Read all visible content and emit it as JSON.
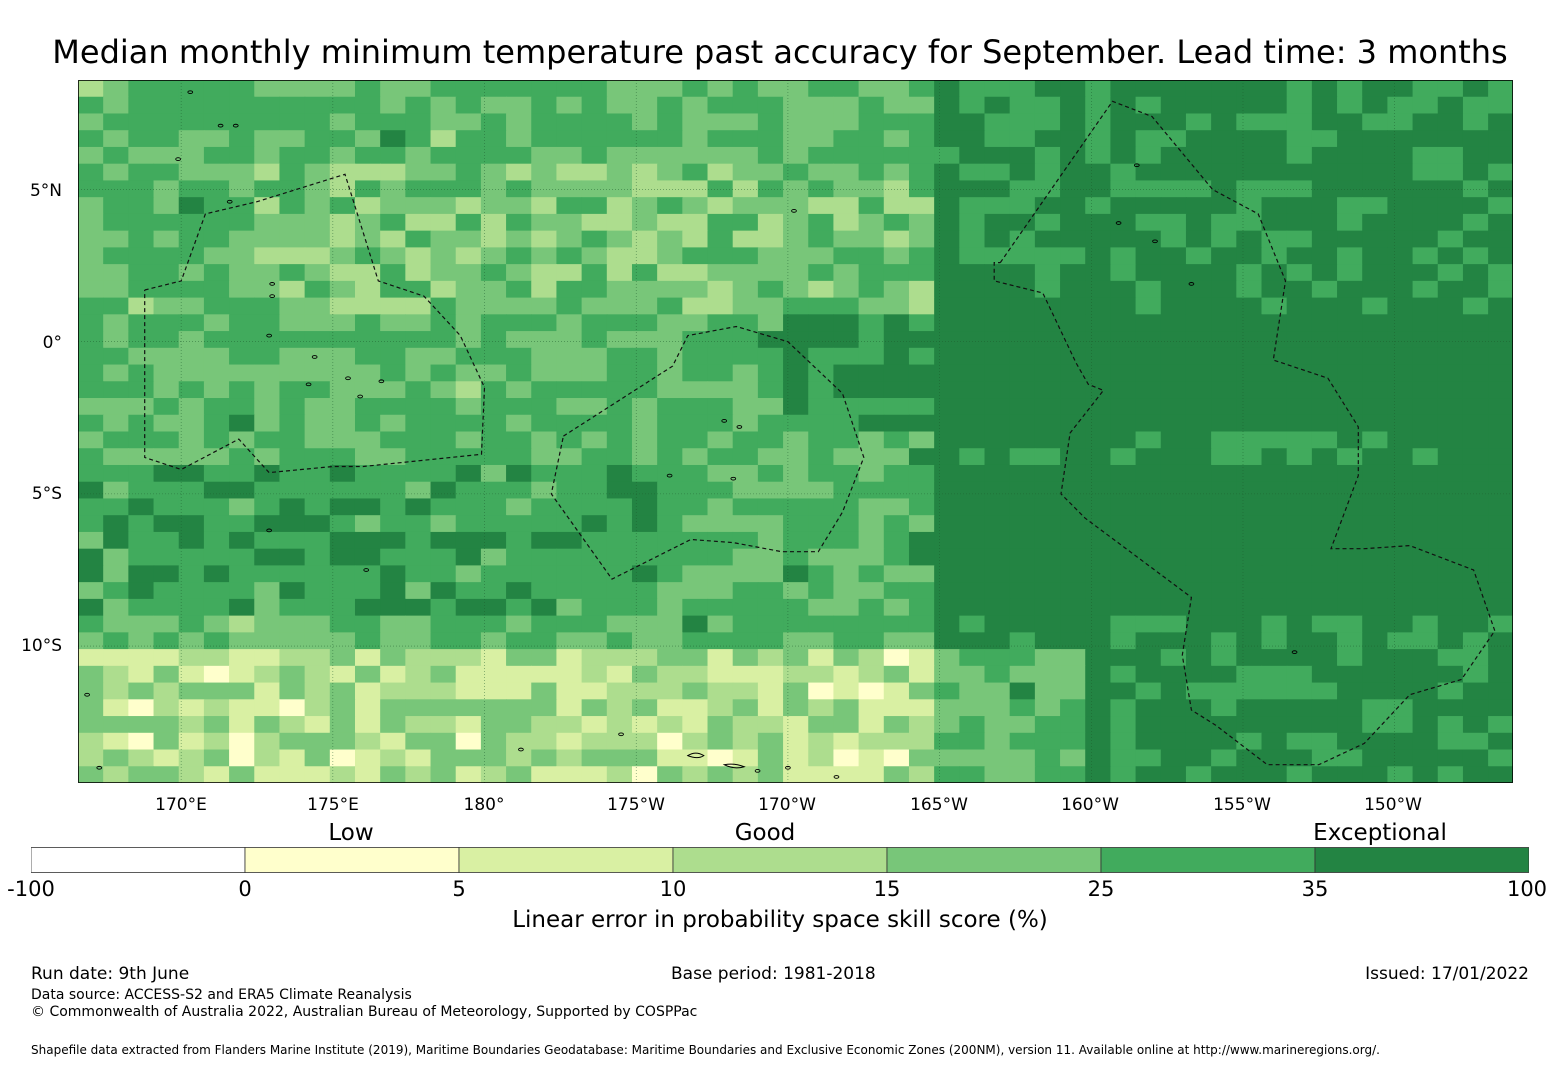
{
  "title": "Median monthly minimum temperature past accuracy for September. Lead time: 3 months",
  "map": {
    "lat_labels": [
      "5°N",
      "0°",
      "5°S",
      "10°S"
    ],
    "lon_labels": [
      "170°E",
      "175°E",
      "180°",
      "175°W",
      "170°W",
      "165°W",
      "160°W",
      "155°W",
      "150°W"
    ],
    "lon_range": [
      166.6,
      213.9
    ],
    "lat_range": [
      -14.5,
      8.6
    ],
    "grid": "dotted graticule every 5°",
    "colors": [
      "#ffffff",
      "#ffffcc",
      "#d9f0a3",
      "#addd8e",
      "#78c679",
      "#41ab5d",
      "#238443"
    ],
    "eez_outlines": "dashed"
  },
  "colorbar": {
    "category_labels": [
      "Low",
      "Good",
      "Exceptional"
    ],
    "tick_labels": [
      "-100",
      "0",
      "5",
      "10",
      "15",
      "25",
      "35",
      "100"
    ],
    "colors": [
      "#ffffff",
      "#ffffcc",
      "#d9f0a3",
      "#addd8e",
      "#78c679",
      "#41ab5d",
      "#238443"
    ],
    "title": "Linear error in probability space skill score (%)"
  },
  "footer": {
    "run_date": "Run date: 9th June",
    "base_period": "Base period: 1981-2018",
    "issued": "Issued: 17/01/2022",
    "data_source": "Data source: ACCESS-S2 and ERA5 Climate Reanalysis",
    "copyright": "© Commonwealth of Australia 2022, Australian Bureau of Meteorology, Supported by COSPPac",
    "shapefile": "Shapefile data extracted from Flanders Marine Institute (2019), Maritime Boundaries Geodatabase: Maritime Boundaries and Exclusive Economic Zones (200NM), version 11. Available online at http://www.marineregions.org/."
  }
}
